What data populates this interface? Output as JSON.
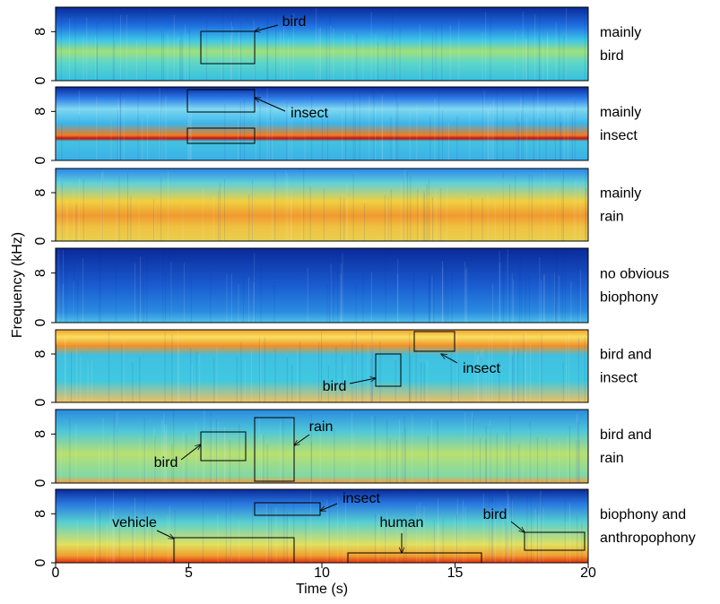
{
  "chart_data": {
    "type": "spectrogram",
    "x_label": "Time (s)",
    "y_label": "Frequency (kHz)",
    "xlim": [
      0,
      20
    ],
    "xticks": [
      0,
      5,
      10,
      15,
      20
    ],
    "ylim": [
      0,
      12
    ],
    "yticks": [
      0,
      8
    ],
    "panels": [
      {
        "label": [
          "mainly",
          "bird"
        ],
        "annotations": [
          "bird"
        ]
      },
      {
        "label": [
          "mainly",
          "insect"
        ],
        "annotations": [
          "insect"
        ]
      },
      {
        "label": [
          "mainly",
          "rain"
        ],
        "annotations": []
      },
      {
        "label": [
          "no obvious",
          "biophony"
        ],
        "annotations": []
      },
      {
        "label": [
          "bird and",
          "insect"
        ],
        "annotations": [
          "bird",
          "insect"
        ]
      },
      {
        "label": [
          "bird and",
          "rain"
        ],
        "annotations": [
          "bird",
          "rain"
        ]
      },
      {
        "label": [
          "biophony and",
          "anthropophony"
        ],
        "annotations": [
          "insect",
          "vehicle",
          "human",
          "bird"
        ]
      }
    ]
  }
}
